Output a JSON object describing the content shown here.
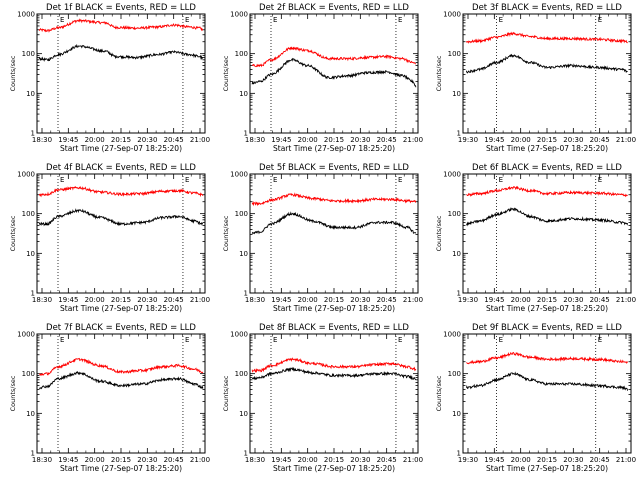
{
  "chart_data": [
    {
      "type": "line",
      "title": "Det 1f BLACK = Events, RED = LLD",
      "xlabel": "Start Time (27-Sep-07 18:25:20)",
      "ylabel": "Counts/sec",
      "ylog": true,
      "ylim": [
        1,
        1000
      ],
      "yticks": [
        "1",
        "10",
        "100",
        "1000"
      ],
      "xlim": [
        "18:25",
        "21:05"
      ],
      "xticks": [
        "18:30",
        "19:45",
        "20:00",
        "20:15",
        "20:30",
        "20:45",
        "21:00"
      ],
      "markers": [
        {
          "label": "E",
          "x": "18:45"
        },
        {
          "label": "E",
          "x": "20:44"
        }
      ],
      "series": [
        {
          "color": "#ff0000",
          "x": [
            "18:27",
            "18:35",
            "18:45",
            "19:05",
            "19:30",
            "19:40",
            "20:00",
            "20:20",
            "20:35",
            "20:50",
            "21:00",
            "21:03"
          ],
          "values": [
            400,
            380,
            450,
            680,
            600,
            460,
            440,
            470,
            530,
            470,
            440,
            400
          ]
        },
        {
          "color": "#000000",
          "x": [
            "18:27",
            "18:35",
            "18:45",
            "19:05",
            "19:30",
            "19:40",
            "20:00",
            "20:20",
            "20:35",
            "20:50",
            "21:00",
            "21:03"
          ],
          "values": [
            75,
            70,
            95,
            155,
            115,
            85,
            80,
            95,
            110,
            95,
            85,
            75
          ]
        }
      ]
    },
    {
      "type": "line",
      "title": "Det 2f BLACK = Events, RED = LLD",
      "xlabel": "Start Time (27-Sep-07 18:25:20)",
      "ylabel": "Counts/sec",
      "ylog": true,
      "ylim": [
        1,
        1000
      ],
      "yticks": [
        "1",
        "10",
        "100",
        "1000"
      ],
      "xlim": [
        "18:25",
        "21:05"
      ],
      "xticks": [
        "18:30",
        "19:45",
        "20:00",
        "20:15",
        "20:30",
        "20:45",
        "21:00"
      ],
      "markers": [
        {
          "label": "E",
          "x": "18:45"
        },
        {
          "label": "E",
          "x": "20:44"
        }
      ],
      "series": [
        {
          "color": "#ff0000",
          "x": [
            "18:27",
            "18:35",
            "18:45",
            "19:05",
            "19:20",
            "19:40",
            "20:00",
            "20:15",
            "20:35",
            "20:50",
            "21:00",
            "21:03"
          ],
          "values": [
            50,
            50,
            70,
            140,
            120,
            75,
            75,
            80,
            85,
            75,
            60,
            55
          ]
        },
        {
          "color": "#000000",
          "x": [
            "18:27",
            "18:35",
            "18:45",
            "19:05",
            "19:20",
            "19:40",
            "20:00",
            "20:15",
            "20:35",
            "20:50",
            "21:00",
            "21:03"
          ],
          "values": [
            18,
            20,
            30,
            70,
            50,
            25,
            28,
            33,
            35,
            28,
            20,
            15
          ]
        }
      ]
    },
    {
      "type": "line",
      "title": "Det 3f BLACK = Events, RED = LLD",
      "xlabel": "Start Time (27-Sep-07 18:25:20)",
      "ylabel": "Counts/sec",
      "ylog": true,
      "ylim": [
        1,
        1000
      ],
      "yticks": [
        "1",
        "10",
        "100",
        "1000"
      ],
      "xlim": [
        "19:25",
        "21:05"
      ],
      "xticks": [
        "19:30",
        "19:45",
        "20:00",
        "20:15",
        "20:30",
        "20:45",
        "21:00"
      ],
      "markers": [
        {
          "label": "E",
          "x": "19:45"
        },
        {
          "label": "E",
          "x": "20:44"
        }
      ],
      "series": [
        {
          "color": "#ff0000",
          "x": [
            "19:27",
            "19:35",
            "19:45",
            "19:55",
            "20:05",
            "20:15",
            "20:30",
            "20:45",
            "21:00",
            "21:03"
          ],
          "values": [
            200,
            210,
            260,
            320,
            270,
            240,
            240,
            230,
            210,
            200
          ]
        },
        {
          "color": "#000000",
          "x": [
            "19:27",
            "19:35",
            "19:45",
            "19:55",
            "20:05",
            "20:15",
            "20:30",
            "20:45",
            "21:00",
            "21:03"
          ],
          "values": [
            35,
            40,
            60,
            90,
            60,
            45,
            50,
            45,
            40,
            35
          ]
        }
      ]
    },
    {
      "type": "line",
      "title": "Det 4f BLACK = Events, RED = LLD",
      "xlabel": "Start Time (27-Sep-07 18:25:20)",
      "ylabel": "Counts/sec",
      "ylog": true,
      "ylim": [
        1,
        1000
      ],
      "yticks": [
        "1",
        "10",
        "100",
        "1000"
      ],
      "xlim": [
        "18:25",
        "21:05"
      ],
      "xticks": [
        "18:30",
        "19:45",
        "20:00",
        "20:15",
        "20:30",
        "20:45",
        "21:00"
      ],
      "markers": [
        {
          "label": "E",
          "x": "18:45"
        },
        {
          "label": "E",
          "x": "20:44"
        }
      ],
      "series": [
        {
          "color": "#ff0000",
          "x": [
            "18:27",
            "18:35",
            "18:45",
            "19:05",
            "19:25",
            "19:45",
            "20:05",
            "20:25",
            "20:40",
            "20:55",
            "21:03"
          ],
          "values": [
            300,
            310,
            400,
            450,
            350,
            310,
            320,
            370,
            380,
            330,
            300
          ]
        },
        {
          "color": "#000000",
          "x": [
            "18:27",
            "18:35",
            "18:45",
            "19:05",
            "19:25",
            "19:45",
            "20:05",
            "20:25",
            "20:40",
            "20:55",
            "21:03"
          ],
          "values": [
            55,
            55,
            85,
            120,
            80,
            55,
            60,
            80,
            85,
            65,
            55
          ]
        }
      ]
    },
    {
      "type": "line",
      "title": "Det 5f BLACK = Events, RED = LLD",
      "xlabel": "Start Time (27-Sep-07 18:25:20)",
      "ylabel": "Counts/sec",
      "ylog": true,
      "ylim": [
        1,
        1000
      ],
      "yticks": [
        "1",
        "10",
        "100",
        "1000"
      ],
      "xlim": [
        "18:25",
        "21:05"
      ],
      "xticks": [
        "18:30",
        "19:45",
        "20:00",
        "20:15",
        "20:30",
        "20:45",
        "21:00"
      ],
      "markers": [
        {
          "label": "E",
          "x": "18:45"
        },
        {
          "label": "E",
          "x": "20:44"
        }
      ],
      "series": [
        {
          "color": "#ff0000",
          "x": [
            "18:27",
            "18:35",
            "18:45",
            "19:05",
            "19:25",
            "19:45",
            "20:05",
            "20:25",
            "20:40",
            "20:55",
            "21:03"
          ],
          "values": [
            180,
            180,
            220,
            300,
            240,
            210,
            210,
            230,
            230,
            210,
            200
          ]
        },
        {
          "color": "#000000",
          "x": [
            "18:27",
            "18:35",
            "18:45",
            "19:05",
            "19:25",
            "19:45",
            "20:05",
            "20:25",
            "20:40",
            "20:55",
            "21:03"
          ],
          "values": [
            32,
            35,
            55,
            100,
            65,
            45,
            45,
            60,
            60,
            45,
            32
          ]
        }
      ]
    },
    {
      "type": "line",
      "title": "Det 6f BLACK = Events, RED = LLD",
      "xlabel": "Start Time (27-Sep-07 18:25:20)",
      "ylabel": "Counts/sec",
      "ylog": true,
      "ylim": [
        1,
        1000
      ],
      "yticks": [
        "1",
        "10",
        "100",
        "1000"
      ],
      "xlim": [
        "19:25",
        "21:05"
      ],
      "xticks": [
        "19:30",
        "19:45",
        "20:00",
        "20:15",
        "20:30",
        "20:45",
        "21:00"
      ],
      "markers": [
        {
          "label": "E",
          "x": "19:45"
        },
        {
          "label": "E",
          "x": "20:44"
        }
      ],
      "series": [
        {
          "color": "#ff0000",
          "x": [
            "19:27",
            "19:35",
            "19:45",
            "19:55",
            "20:05",
            "20:15",
            "20:30",
            "20:45",
            "21:00",
            "21:03"
          ],
          "values": [
            300,
            320,
            380,
            450,
            380,
            320,
            340,
            330,
            300,
            290
          ]
        },
        {
          "color": "#000000",
          "x": [
            "19:27",
            "19:35",
            "19:45",
            "19:55",
            "20:05",
            "20:15",
            "20:30",
            "20:45",
            "21:00",
            "21:03"
          ],
          "values": [
            55,
            65,
            95,
            130,
            85,
            65,
            75,
            70,
            60,
            55
          ]
        }
      ]
    },
    {
      "type": "line",
      "title": "Det 7f BLACK = Events, RED = LLD",
      "xlabel": "Start Time (27-Sep-07 18:25:20)",
      "ylabel": "Counts/sec",
      "ylog": true,
      "ylim": [
        1,
        1000
      ],
      "yticks": [
        "1",
        "10",
        "100",
        "1000"
      ],
      "xlim": [
        "18:25",
        "21:05"
      ],
      "xticks": [
        "18:30",
        "19:45",
        "20:00",
        "20:15",
        "20:30",
        "20:45",
        "21:00"
      ],
      "markers": [
        {
          "label": "E",
          "x": "18:45"
        },
        {
          "label": "E",
          "x": "20:44"
        }
      ],
      "series": [
        {
          "color": "#ff0000",
          "x": [
            "18:27",
            "18:35",
            "18:45",
            "19:05",
            "19:25",
            "19:45",
            "20:05",
            "20:25",
            "20:40",
            "20:55",
            "21:03"
          ],
          "values": [
            95,
            100,
            150,
            230,
            160,
            110,
            120,
            150,
            160,
            130,
            110
          ]
        },
        {
          "color": "#000000",
          "x": [
            "18:27",
            "18:35",
            "18:45",
            "19:05",
            "19:25",
            "19:45",
            "20:05",
            "20:25",
            "20:40",
            "20:55",
            "21:03"
          ],
          "values": [
            45,
            48,
            75,
            105,
            65,
            50,
            55,
            70,
            75,
            55,
            45
          ]
        }
      ]
    },
    {
      "type": "line",
      "title": "Det 8f BLACK = Events, RED = LLD",
      "xlabel": "Start Time (27-Sep-07 18:25:20)",
      "ylabel": "Counts/sec",
      "ylog": true,
      "ylim": [
        1,
        1000
      ],
      "yticks": [
        "1",
        "10",
        "100",
        "1000"
      ],
      "xlim": [
        "18:25",
        "21:05"
      ],
      "xticks": [
        "18:30",
        "19:45",
        "20:00",
        "20:15",
        "20:30",
        "20:45",
        "21:00"
      ],
      "markers": [
        {
          "label": "E",
          "x": "18:45"
        },
        {
          "label": "E",
          "x": "20:44"
        }
      ],
      "series": [
        {
          "color": "#ff0000",
          "x": [
            "18:27",
            "18:35",
            "18:45",
            "19:05",
            "19:25",
            "19:45",
            "20:05",
            "20:25",
            "20:40",
            "20:55",
            "21:03"
          ],
          "values": [
            120,
            120,
            160,
            230,
            180,
            150,
            150,
            170,
            180,
            150,
            130
          ]
        },
        {
          "color": "#000000",
          "x": [
            "18:27",
            "18:35",
            "18:45",
            "19:05",
            "19:25",
            "19:45",
            "20:05",
            "20:25",
            "20:40",
            "20:55",
            "21:03"
          ],
          "values": [
            75,
            80,
            100,
            130,
            105,
            90,
            90,
            100,
            100,
            85,
            75
          ]
        }
      ]
    },
    {
      "type": "line",
      "title": "Det 9f BLACK = Events, RED = LLD",
      "xlabel": "Start Time (27-Sep-07 18:25:20)",
      "ylabel": "Counts/sec",
      "ylog": true,
      "ylim": [
        1,
        1000
      ],
      "yticks": [
        "1",
        "10",
        "100",
        "1000"
      ],
      "xlim": [
        "19:25",
        "21:05"
      ],
      "xticks": [
        "19:30",
        "19:45",
        "20:00",
        "20:15",
        "20:30",
        "20:45",
        "21:00"
      ],
      "markers": [
        {
          "label": "E",
          "x": "19:45"
        },
        {
          "label": "E",
          "x": "20:44"
        }
      ],
      "series": [
        {
          "color": "#ff0000",
          "x": [
            "19:27",
            "19:35",
            "19:45",
            "19:55",
            "20:05",
            "20:15",
            "20:30",
            "20:45",
            "21:00",
            "21:03"
          ],
          "values": [
            190,
            200,
            250,
            320,
            260,
            230,
            240,
            230,
            200,
            190
          ]
        },
        {
          "color": "#000000",
          "x": [
            "19:27",
            "19:35",
            "19:45",
            "19:55",
            "20:05",
            "20:15",
            "20:30",
            "20:45",
            "21:00",
            "21:03"
          ],
          "values": [
            45,
            50,
            70,
            100,
            70,
            55,
            55,
            50,
            45,
            40
          ]
        }
      ]
    }
  ]
}
